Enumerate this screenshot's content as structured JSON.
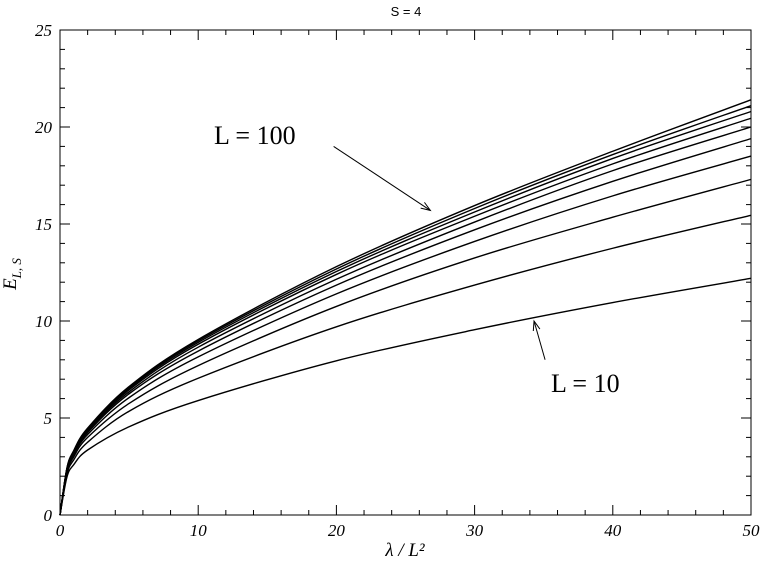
{
  "chart_data": {
    "type": "line",
    "title": "S = 4",
    "xlabel": "λ / L²",
    "ylabel": "E_{L, S}",
    "xlim": [
      0,
      50
    ],
    "ylim": [
      0,
      25
    ],
    "xticks": [
      0,
      10,
      20,
      30,
      40,
      50
    ],
    "yticks": [
      0,
      5,
      10,
      15,
      20,
      25
    ],
    "grid": false,
    "x": [
      0,
      0.5,
      1,
      2,
      5,
      10,
      20,
      30,
      40,
      50
    ],
    "series": [
      {
        "values": [
          0,
          1.95,
          2.6,
          3.35,
          4.55,
          5.9,
          7.95,
          9.55,
          10.95,
          12.2
        ]
      },
      {
        "values": [
          0,
          2.1,
          2.85,
          3.75,
          5.35,
          7.05,
          9.7,
          11.85,
          13.75,
          15.45
        ]
      },
      {
        "values": [
          0,
          2.2,
          3.0,
          4.0,
          5.75,
          7.7,
          10.75,
          13.25,
          15.35,
          17.3
        ]
      },
      {
        "values": [
          0,
          2.27,
          3.1,
          4.15,
          6.05,
          8.15,
          11.4,
          14.1,
          16.45,
          18.5
        ]
      },
      {
        "values": [
          0,
          2.32,
          3.17,
          4.25,
          6.25,
          8.45,
          11.85,
          14.7,
          17.2,
          19.4
        ]
      },
      {
        "values": [
          0,
          2.35,
          3.22,
          4.33,
          6.35,
          8.65,
          12.15,
          15.1,
          17.75,
          20.0
        ]
      },
      {
        "values": [
          0,
          2.37,
          3.26,
          4.38,
          6.45,
          8.8,
          12.4,
          15.4,
          18.1,
          20.45
        ]
      },
      {
        "values": [
          0,
          2.39,
          3.29,
          4.42,
          6.52,
          8.9,
          12.55,
          15.62,
          18.38,
          20.8
        ]
      },
      {
        "values": [
          0,
          2.4,
          3.31,
          4.45,
          6.58,
          8.98,
          12.68,
          15.8,
          18.58,
          21.1
        ]
      },
      {
        "values": [
          0,
          2.41,
          3.33,
          4.48,
          6.62,
          9.05,
          12.8,
          15.95,
          18.75,
          21.4
        ]
      }
    ],
    "annotations": [
      {
        "text": "L = 100",
        "from": [
          19.8,
          19.0
        ],
        "to": [
          26.8,
          15.7
        ]
      },
      {
        "text": "L = 10",
        "from": [
          35.1,
          8.0
        ],
        "to": [
          34.3,
          10.0
        ]
      }
    ]
  }
}
